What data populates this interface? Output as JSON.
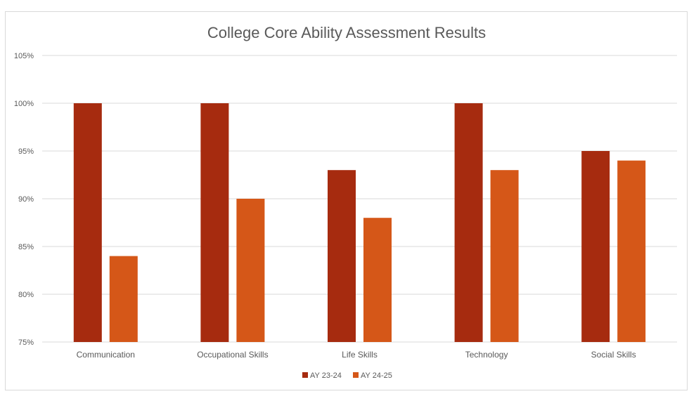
{
  "chart_data": {
    "type": "bar",
    "title": "College Core Ability Assessment Results",
    "xlabel": "",
    "ylabel": "",
    "categories": [
      "Communication",
      "Occupational Skills",
      "Life Skills",
      "Technology",
      "Social Skills"
    ],
    "series": [
      {
        "name": "AY 23-24",
        "color": "#A62B0F",
        "values": [
          100,
          100,
          93,
          100,
          95
        ]
      },
      {
        "name": "AY 24-25",
        "color": "#D55718",
        "values": [
          84,
          90,
          88,
          93,
          94
        ]
      }
    ],
    "ylim": [
      75,
      105
    ],
    "yticks": [
      "75%",
      "80%",
      "85%",
      "90%",
      "95%",
      "100%",
      "105%"
    ],
    "ytick_values": [
      75,
      80,
      85,
      90,
      95,
      100,
      105
    ],
    "grid": true,
    "legend": "bottom"
  }
}
